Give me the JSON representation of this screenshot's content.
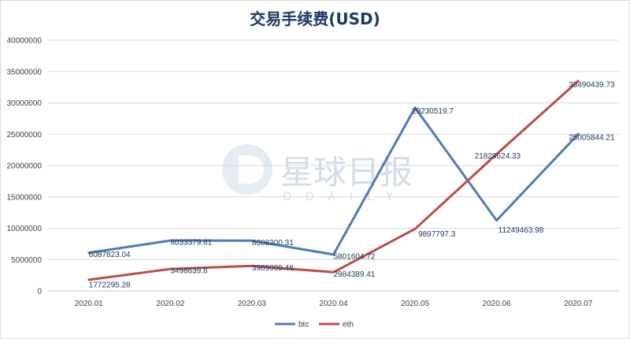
{
  "chart_data": {
    "type": "line",
    "title": "交易手续费(USD)",
    "categories": [
      "2020.01",
      "2020.02",
      "2020.03",
      "2020.04",
      "2020.05",
      "2020.06",
      "2020.07"
    ],
    "ylim": [
      0,
      40000000
    ],
    "yticks": [
      "0",
      "5000000",
      "10000000",
      "15000000",
      "20000000",
      "25000000",
      "30000000",
      "35000000",
      "40000000"
    ],
    "grid": true,
    "legend": "bottom",
    "series": [
      {
        "name": "btc",
        "color": "#4a7ebb",
        "values": [
          6087823.04,
          8033379.81,
          8008300.31,
          5801604.72,
          29230519.7,
          11249463.98,
          25005844.21
        ],
        "labels": [
          "6087823.04",
          "8033379.81",
          "8008300.31",
          "5801604.72",
          "29230519.7",
          "11249463.98",
          "25005844.21"
        ]
      },
      {
        "name": "eth",
        "color": "#be4b48",
        "values": [
          1772295.28,
          3498639.8,
          3989099.48,
          2984389.41,
          9897797.3,
          21828624.33,
          33490439.73
        ],
        "labels": [
          "1772295.28",
          "3498639.8",
          "3989099.48",
          "2984389.41",
          "9897797.3",
          "21828624.33",
          "33490439.73"
        ]
      }
    ]
  },
  "watermark": {
    "text": "星球日报",
    "sub": "ODAILY"
  }
}
